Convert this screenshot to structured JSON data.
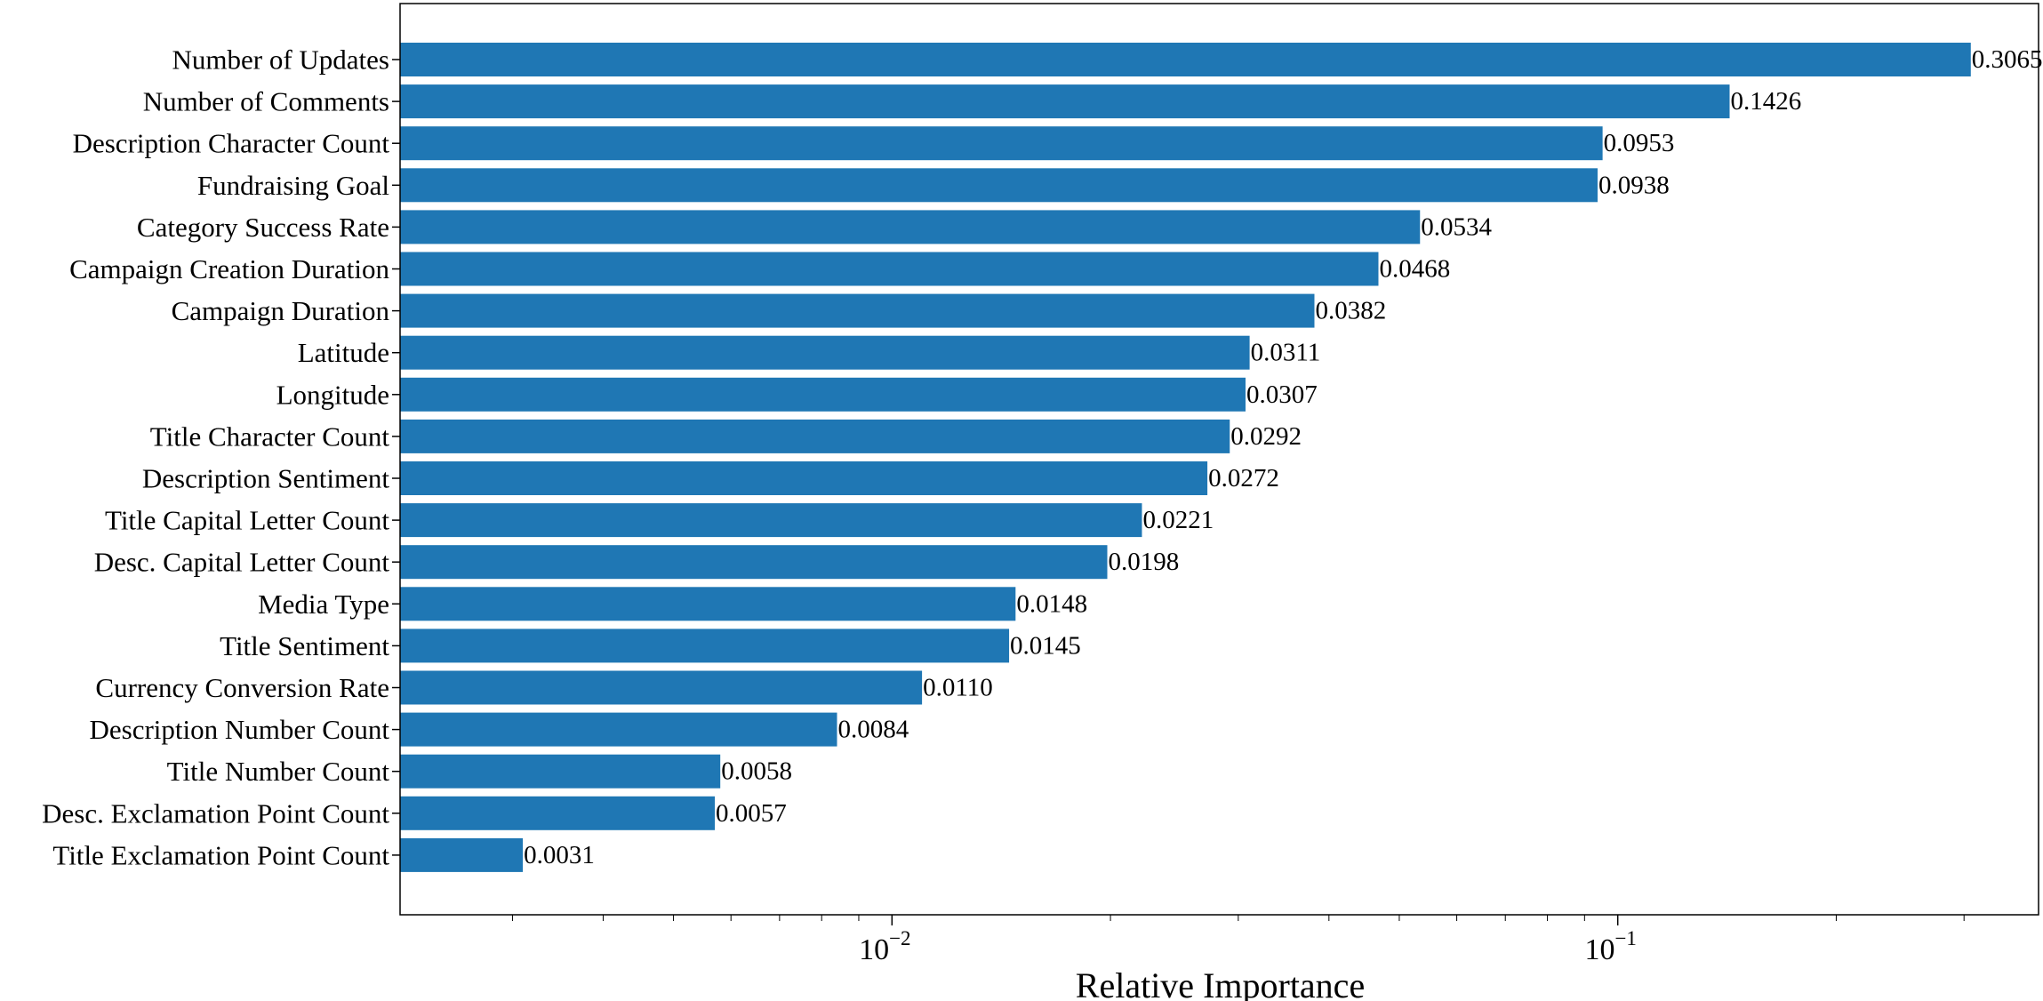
{
  "chart_data": {
    "type": "bar",
    "orientation": "horizontal",
    "xscale": "log",
    "xlabel": "Relative Importance",
    "ylabel": "",
    "xlim": [
      0.0021,
      0.38
    ],
    "x_ticks": [
      {
        "value": 0.01,
        "base": "10",
        "exp": "−2"
      },
      {
        "value": 0.1,
        "base": "10",
        "exp": "−1"
      }
    ],
    "grid": false,
    "legend": "none",
    "bar_color": "#1f77b4",
    "categories": [
      "Number of Updates",
      "Number of Comments",
      "Description Character Count",
      "Fundraising Goal",
      "Category Success Rate",
      "Campaign Creation Duration",
      "Campaign Duration",
      "Latitude",
      "Longitude",
      "Title Character Count",
      "Description Sentiment",
      "Title Capital Letter Count",
      "Desc. Capital Letter Count",
      "Media Type",
      "Title Sentiment",
      "Currency Conversion Rate",
      "Description Number Count",
      "Title Number Count",
      "Desc. Exclamation Point Count",
      "Title Exclamation Point Count"
    ],
    "values": [
      0.3065,
      0.1426,
      0.0953,
      0.0938,
      0.0534,
      0.0468,
      0.0382,
      0.0311,
      0.0307,
      0.0292,
      0.0272,
      0.0221,
      0.0198,
      0.0148,
      0.0145,
      0.011,
      0.0084,
      0.0058,
      0.0057,
      0.0031
    ],
    "value_labels": [
      "0.3065",
      "0.1426",
      "0.0953",
      "0.0938",
      "0.0534",
      "0.0468",
      "0.0382",
      "0.0311",
      "0.0307",
      "0.0292",
      "0.0272",
      "0.0221",
      "0.0198",
      "0.0148",
      "0.0145",
      "0.0110",
      "0.0084",
      "0.0058",
      "0.0057",
      "0.0031"
    ]
  }
}
